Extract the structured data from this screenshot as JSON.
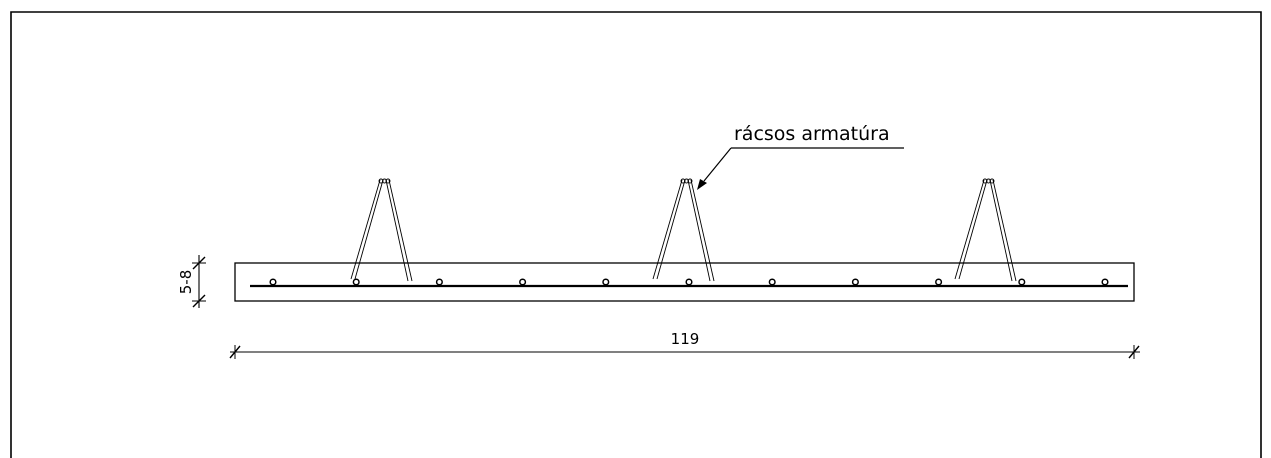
{
  "drawing": {
    "leader_label": "rácsos armatúra",
    "length_dimension": "119",
    "thickness_dimension": "5-8",
    "rebar_count": 11,
    "truss_count": 3
  }
}
